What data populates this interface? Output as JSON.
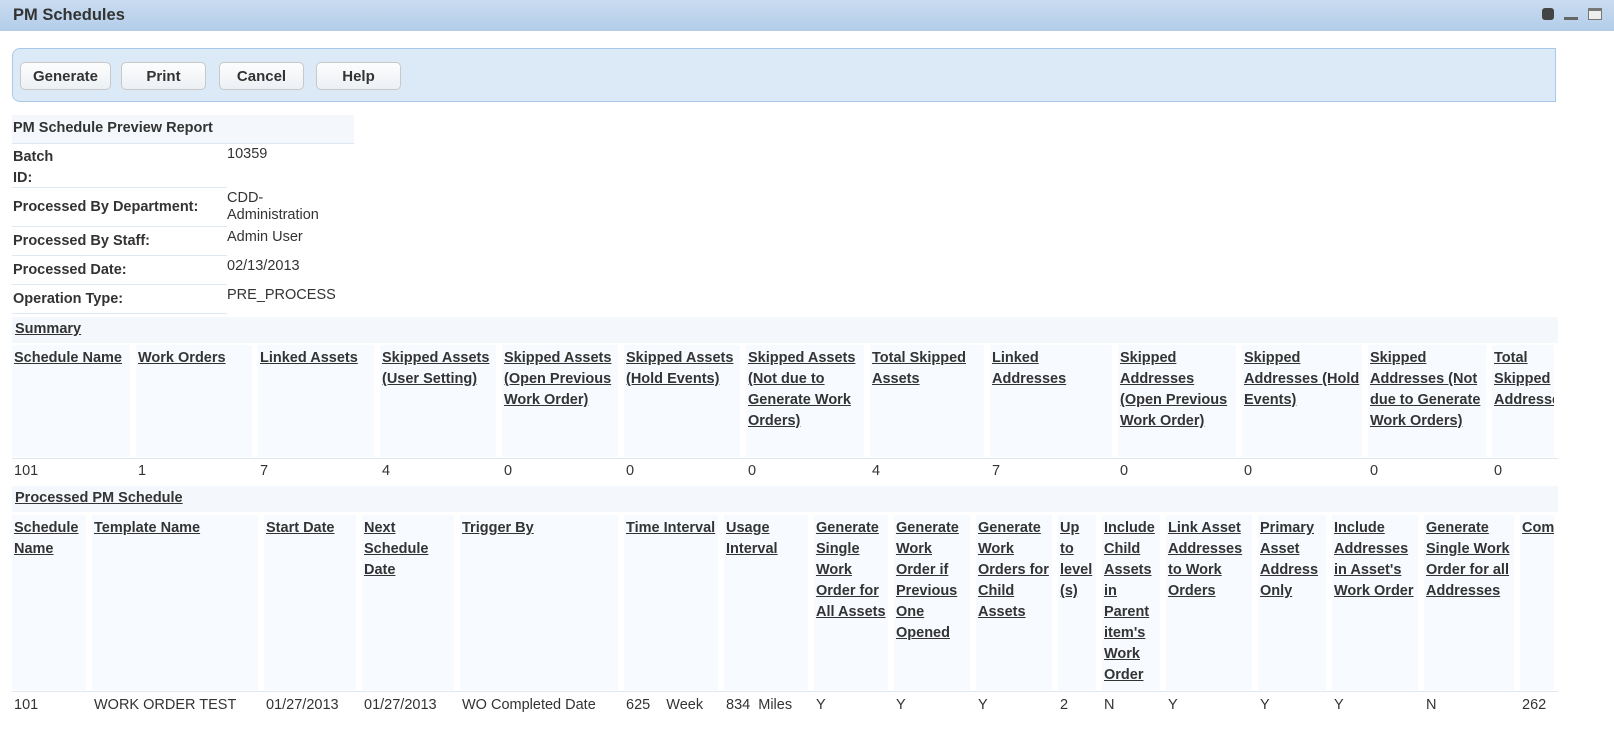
{
  "window": {
    "title": "PM Schedules",
    "icons": [
      "refresh-icon",
      "minimize-icon",
      "maximize-icon"
    ]
  },
  "toolbar": {
    "generate": "Generate",
    "print": "Print",
    "cancel": "Cancel",
    "help": "Help"
  },
  "report": {
    "title": "PM Schedule Preview Report",
    "fields": [
      {
        "label": "Batch ID:",
        "value": "10359"
      },
      {
        "label": "Processed By Department:",
        "value": "CDD-Administration"
      },
      {
        "label": "Processed By Staff:",
        "value": "Admin User"
      },
      {
        "label": "Processed Date:",
        "value": "02/13/2013"
      },
      {
        "label": "Operation Type:",
        "value": "PRE_PROCESS"
      }
    ]
  },
  "summary": {
    "title": "Summary",
    "headers": [
      "Schedule Name",
      "Work Orders",
      "Linked Assets",
      "Skipped Assets (User Setting)",
      "Skipped Assets (Open Previous Work Order)",
      "Skipped Assets (Hold Events)",
      "Skipped Assets (Not due to Generate Work Orders)",
      "Total Skipped Assets",
      "Linked Addresses",
      "Skipped Addresses (Open Previous Work Order)",
      "Skipped Addresses (Hold Events)",
      "Skipped Addresses (Not due to Generate Work Orders)",
      "Total Skipped Addresses"
    ],
    "rows": [
      [
        "101",
        "1",
        "7",
        "4",
        "0",
        "0",
        "0",
        "4",
        "7",
        "0",
        "0",
        "0",
        "0"
      ]
    ]
  },
  "processed": {
    "title": "Processed PM Schedule",
    "headers": [
      "Schedule Name",
      "Template Name",
      "Start Date",
      "Next Schedule Date",
      "Trigger By",
      "Time Interval",
      "Usage Interval",
      "Generate Single Work Order for All Assets",
      "Generate Work Order if Previous One Opened",
      "Generate Work Orders for Child Assets",
      "Up to level (s)",
      "Include Child Assets in Parent item's Work Order",
      "Link Asset Addresses to Work Orders",
      "Primary Asset Address Only",
      "Include Addresses in Asset's Work Order",
      "Generate Single Work Order for all Addresses",
      "Com"
    ],
    "rows": [
      [
        "101",
        "WORK ORDER TEST",
        "01/27/2013",
        "01/27/2013",
        "WO Completed Date",
        "625    Week",
        "834  Miles",
        "Y",
        "Y",
        "Y",
        "2",
        "N",
        "Y",
        "Y",
        "Y",
        "N",
        "262"
      ]
    ]
  }
}
